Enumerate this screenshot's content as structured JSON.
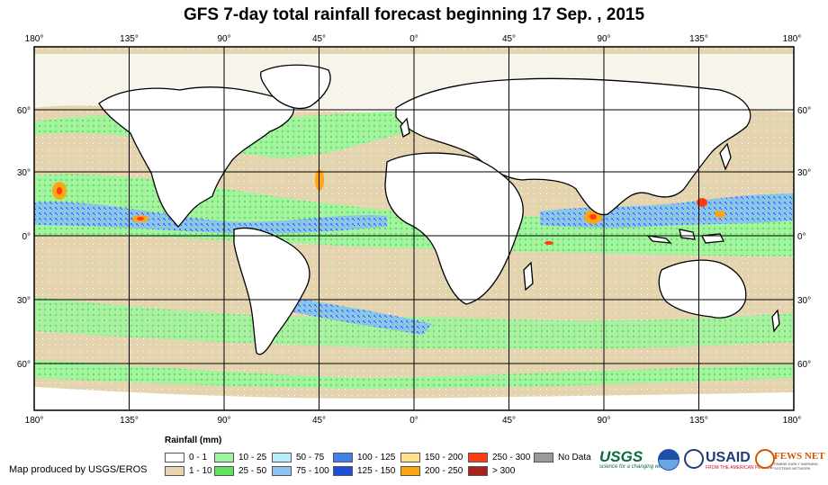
{
  "title": "GFS 7-day total rainfall forecast beginning 17 Sep. , 2015",
  "lon_labels": [
    "180°",
    "135°",
    "90°",
    "45°",
    "0°",
    "45°",
    "90°",
    "135°",
    "180°"
  ],
  "lat_labels": [
    "60°",
    "30°",
    "0°",
    "30°",
    "60°"
  ],
  "legend": {
    "title": "Rainfall (mm)",
    "items": [
      {
        "label": "0 - 1",
        "color": "#ffffff"
      },
      {
        "label": "1 - 10",
        "color": "#e8d3b1"
      },
      {
        "label": "10 - 25",
        "color": "#9ef59e"
      },
      {
        "label": "25 - 50",
        "color": "#5fe35f"
      },
      {
        "label": "50 - 75",
        "color": "#b8eefc"
      },
      {
        "label": "75 - 100",
        "color": "#8fc2f5"
      },
      {
        "label": "100 - 125",
        "color": "#3f83e8"
      },
      {
        "label": "125 - 150",
        "color": "#1b4fd8"
      },
      {
        "label": "150 - 200",
        "color": "#ffe18c"
      },
      {
        "label": "200 - 250",
        "color": "#ffa514"
      },
      {
        "label": "250 - 300",
        "color": "#ff3b0f"
      },
      {
        "label": "> 300",
        "color": "#a8211b"
      },
      {
        "label": "No Data",
        "color": "#9a9a9a"
      }
    ]
  },
  "credit": "Map produced by USGS/EROS",
  "logos": {
    "usgs": "USGS",
    "usgs_tagline": "science for a changing world",
    "usaid": "USAID",
    "usaid_tagline": "FROM THE AMERICAN PEOPLE",
    "fews": "FEWS NET",
    "fews_tagline": "FAMINE EARLY WARNING SYSTEMS NETWORK"
  }
}
